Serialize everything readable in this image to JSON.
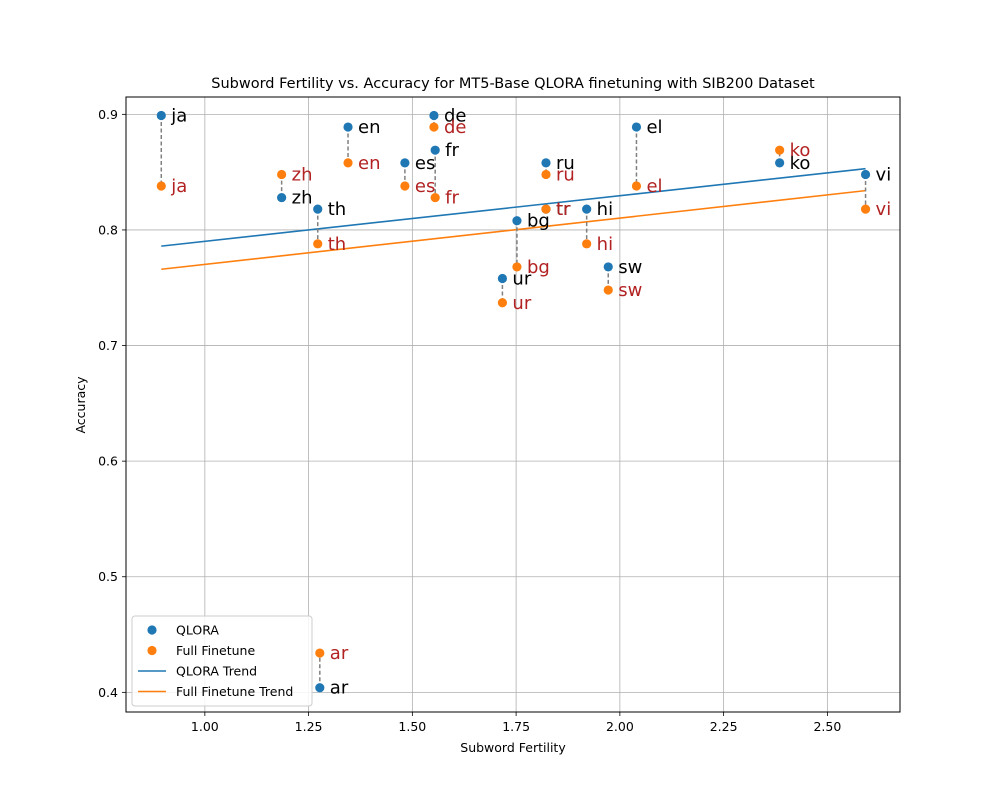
{
  "chart_data": {
    "type": "scatter",
    "title": "Subword Fertility vs. Accuracy for MT5-Base QLORA finetuning with SIB200 Dataset",
    "xlabel": "Subword Fertility",
    "ylabel": "Accuracy",
    "xlim": [
      0.81,
      2.675
    ],
    "ylim": [
      0.383,
      0.915
    ],
    "xticks": [
      1.0,
      1.25,
      1.5,
      1.75,
      2.0,
      2.25,
      2.5
    ],
    "xtick_labels": [
      "1.00",
      "1.25",
      "1.50",
      "1.75",
      "2.00",
      "2.25",
      "2.50"
    ],
    "yticks": [
      0.4,
      0.5,
      0.6,
      0.7,
      0.8,
      0.9
    ],
    "ytick_labels": [
      "0.4",
      "0.5",
      "0.6",
      "0.7",
      "0.8",
      "0.9"
    ],
    "grid": true,
    "legend_position": "lower-left",
    "points": [
      {
        "label": "ja",
        "x": 0.895,
        "qlora": 0.899,
        "full": 0.838
      },
      {
        "label": "zh",
        "x": 1.185,
        "qlora": 0.828,
        "full": 0.848
      },
      {
        "label": "th",
        "x": 1.272,
        "qlora": 0.818,
        "full": 0.788
      },
      {
        "label": "ar",
        "x": 1.277,
        "qlora": 0.404,
        "full": 0.434
      },
      {
        "label": "en",
        "x": 1.345,
        "qlora": 0.889,
        "full": 0.858
      },
      {
        "label": "es",
        "x": 1.482,
        "qlora": 0.858,
        "full": 0.838
      },
      {
        "label": "de",
        "x": 1.552,
        "qlora": 0.899,
        "full": 0.889
      },
      {
        "label": "fr",
        "x": 1.555,
        "qlora": 0.869,
        "full": 0.828
      },
      {
        "label": "ur",
        "x": 1.717,
        "qlora": 0.758,
        "full": 0.737
      },
      {
        "label": "bg",
        "x": 1.752,
        "qlora": 0.808,
        "full": 0.768
      },
      {
        "label": "ru",
        "x": 1.822,
        "qlora": 0.858,
        "full": 0.848
      },
      {
        "label": "tr",
        "x": 1.822,
        "qlora": 0.818,
        "full": 0.818
      },
      {
        "label": "hi",
        "x": 1.92,
        "qlora": 0.818,
        "full": 0.788
      },
      {
        "label": "sw",
        "x": 1.972,
        "qlora": 0.768,
        "full": 0.748
      },
      {
        "label": "el",
        "x": 2.04,
        "qlora": 0.889,
        "full": 0.838
      },
      {
        "label": "ko",
        "x": 2.385,
        "qlora": 0.858,
        "full": 0.869
      },
      {
        "label": "vi",
        "x": 2.592,
        "qlora": 0.848,
        "full": 0.818
      }
    ],
    "series": [
      {
        "name": "QLORA",
        "color": "#1f77b4",
        "kind": "scatter"
      },
      {
        "name": "Full Finetune",
        "color": "#ff7f0e",
        "kind": "scatter"
      },
      {
        "name": "QLORA Trend",
        "color": "#1f77b4",
        "kind": "line",
        "x": [
          0.895,
          2.592
        ],
        "y": [
          0.786,
          0.853
        ]
      },
      {
        "name": "Full Finetune Trend",
        "color": "#ff7f0e",
        "kind": "line",
        "x": [
          0.895,
          2.592
        ],
        "y": [
          0.766,
          0.834
        ]
      }
    ],
    "colors": {
      "qlora_label": "#000000",
      "full_label": "#b22222",
      "connector": "#808080",
      "grid": "#b0b0b0"
    }
  }
}
